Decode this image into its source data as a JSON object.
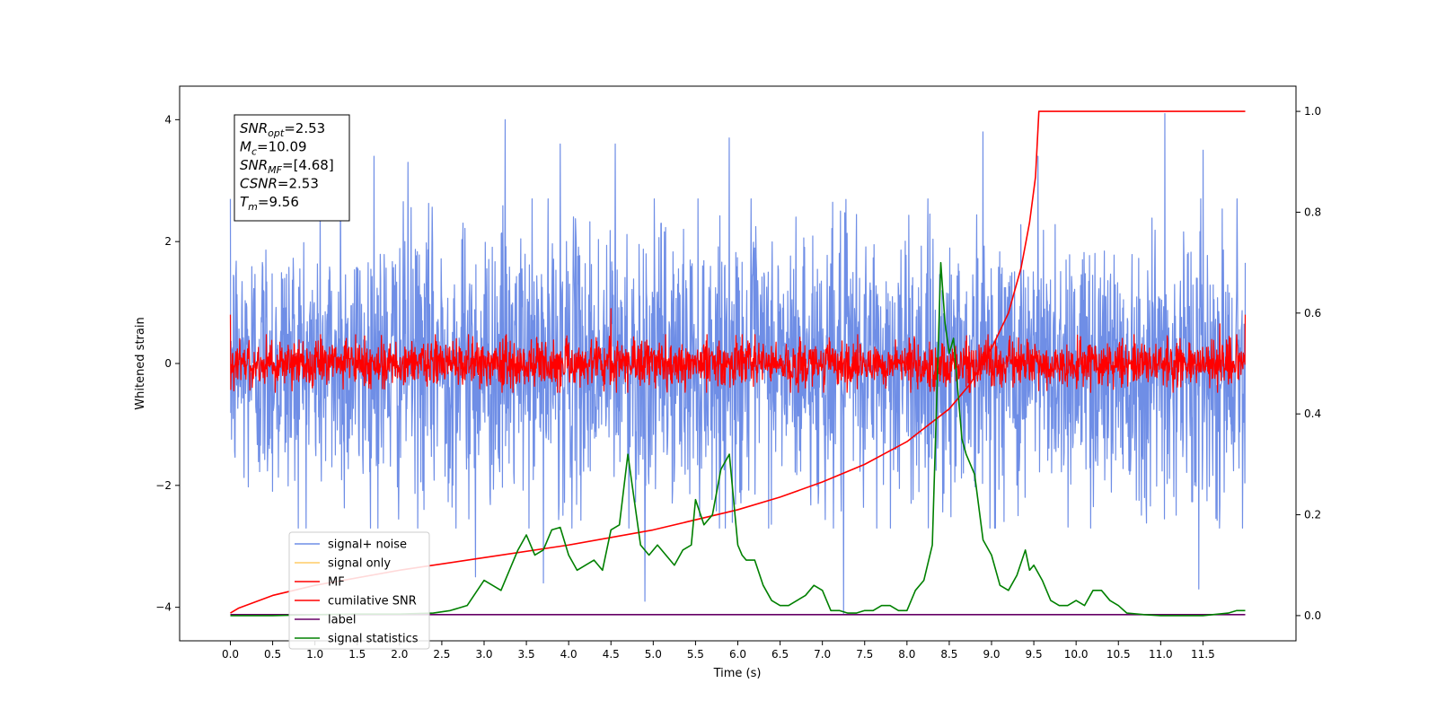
{
  "chart_data": {
    "type": "line",
    "xlabel": "Time (s)",
    "ylabel": "Whitened strain",
    "xlim": [
      -0.6,
      12.6
    ],
    "ylim_left": [
      -4.55,
      4.55
    ],
    "ylim_right": [
      -0.05,
      1.05
    ],
    "x_ticks": [
      0.0,
      0.5,
      1.0,
      1.5,
      2.0,
      2.5,
      3.0,
      3.5,
      4.0,
      4.5,
      5.0,
      5.5,
      6.0,
      6.5,
      7.0,
      7.5,
      8.0,
      8.5,
      9.0,
      9.5,
      10.0,
      10.5,
      11.0,
      11.5
    ],
    "x_tick_labels": [
      "0.0",
      "0.5",
      "1.0",
      "1.5",
      "2.0",
      "2.5",
      "3.0",
      "3.5",
      "4.0",
      "4.5",
      "5.0",
      "5.5",
      "6.0",
      "6.5",
      "7.0",
      "7.5",
      "8.0",
      "8.5",
      "9.0",
      "9.5",
      "10.0",
      "10.5",
      "11.0",
      "11.5"
    ],
    "y_left_ticks": [
      -4,
      -2,
      0,
      2,
      4
    ],
    "y_left_tick_labels": [
      "−4",
      "−2",
      "0",
      "2",
      "4"
    ],
    "y_right_ticks": [
      0.0,
      0.2,
      0.4,
      0.6,
      0.8,
      1.0
    ],
    "y_right_tick_labels": [
      "0.0",
      "0.2",
      "0.4",
      "0.6",
      "0.8",
      "1.0"
    ],
    "grid": false,
    "legend_placement": "bottom-left",
    "legend": [
      {
        "name": "signal+ noise",
        "color": "#6f8ee6"
      },
      {
        "name": "signal only",
        "color": "#ffcc66"
      },
      {
        "name": "MF",
        "color": "#ff0000"
      },
      {
        "name": "cumilative SNR",
        "color": "#ff0000"
      },
      {
        "name": "label",
        "color": "#660066"
      },
      {
        "name": "signal statistics",
        "color": "#008000"
      }
    ],
    "annotation_lines": [
      {
        "var": "SNR",
        "sub": "opt",
        "value": "=2.53"
      },
      {
        "var": "M",
        "sub": "c",
        "value": "=10.09"
      },
      {
        "var": "SNR",
        "sub": "MF",
        "value": "=[4.68]"
      },
      {
        "var": "CSNR",
        "sub": "",
        "value": "=2.53"
      },
      {
        "var": "T",
        "sub": "m",
        "value": "=9.56"
      }
    ],
    "series": [
      {
        "name": "signal+ noise",
        "axis": "left",
        "color": "#6f8ee6",
        "style": "noise",
        "x_range": [
          0.0,
          12.0
        ],
        "amplitude_typical": 2.0,
        "peak_events": [
          [
            1.3,
            3.2
          ],
          [
            1.7,
            3.4
          ],
          [
            2.1,
            3.3
          ],
          [
            3.25,
            4.0
          ],
          [
            3.9,
            3.6
          ],
          [
            4.55,
            3.6
          ],
          [
            5.9,
            3.7
          ],
          [
            8.9,
            3.8
          ],
          [
            9.55,
            3.4
          ],
          [
            11.05,
            4.1
          ],
          [
            11.5,
            3.5
          ],
          [
            7.25,
            -4.1
          ],
          [
            4.9,
            -3.9
          ],
          [
            3.7,
            -3.6
          ],
          [
            11.45,
            -3.7
          ],
          [
            2.9,
            -3.5
          ]
        ]
      },
      {
        "name": "MF",
        "axis": "left",
        "color": "#ff0000",
        "style": "noise",
        "x_range": [
          0.0,
          12.0
        ],
        "amplitude_typical": 0.35,
        "peak_events": [
          [
            0.0,
            0.8
          ],
          [
            4.5,
            0.9
          ],
          [
            12.0,
            0.8
          ],
          [
            11.7,
            0.65
          ]
        ]
      },
      {
        "name": "cumilative SNR",
        "axis": "right",
        "color": "#ff0000",
        "x": [
          0.0,
          0.1,
          0.5,
          1.0,
          2.0,
          3.0,
          4.0,
          5.0,
          6.0,
          6.5,
          7.0,
          7.5,
          8.0,
          8.5,
          8.75,
          9.0,
          9.2,
          9.35,
          9.45,
          9.52,
          9.56,
          10.0,
          11.0,
          12.0
        ],
        "values": [
          0.005,
          0.015,
          0.04,
          0.06,
          0.09,
          0.115,
          0.14,
          0.17,
          0.21,
          0.235,
          0.265,
          0.3,
          0.345,
          0.41,
          0.46,
          0.53,
          0.6,
          0.69,
          0.78,
          0.87,
          1.0,
          1.0,
          1.0,
          1.0
        ]
      },
      {
        "name": "label",
        "axis": "right",
        "color": "#660066",
        "x": [
          0.0,
          12.0
        ],
        "values": [
          0.002,
          0.002
        ]
      },
      {
        "name": "signal statistics",
        "axis": "right",
        "color": "#008000",
        "x": [
          0.0,
          0.5,
          1.0,
          1.5,
          2.0,
          2.4,
          2.6,
          2.8,
          3.0,
          3.1,
          3.2,
          3.3,
          3.4,
          3.5,
          3.6,
          3.7,
          3.8,
          3.9,
          4.0,
          4.1,
          4.2,
          4.3,
          4.4,
          4.5,
          4.6,
          4.7,
          4.75,
          4.85,
          4.95,
          5.05,
          5.15,
          5.25,
          5.35,
          5.45,
          5.5,
          5.6,
          5.7,
          5.8,
          5.9,
          6.0,
          6.05,
          6.1,
          6.2,
          6.3,
          6.4,
          6.5,
          6.6,
          6.7,
          6.8,
          6.9,
          7.0,
          7.1,
          7.2,
          7.3,
          7.4,
          7.5,
          7.6,
          7.7,
          7.8,
          7.9,
          8.0,
          8.1,
          8.2,
          8.3,
          8.4,
          8.45,
          8.5,
          8.55,
          8.6,
          8.65,
          8.7,
          8.8,
          8.9,
          9.0,
          9.1,
          9.2,
          9.3,
          9.4,
          9.45,
          9.5,
          9.6,
          9.7,
          9.8,
          9.9,
          10.0,
          10.1,
          10.2,
          10.3,
          10.4,
          10.5,
          10.6,
          10.8,
          11.0,
          11.5,
          11.8,
          11.9,
          12.0
        ],
        "values": [
          0.0,
          0.0,
          0.002,
          0.003,
          0.003,
          0.005,
          0.01,
          0.02,
          0.07,
          0.06,
          0.05,
          0.09,
          0.13,
          0.16,
          0.12,
          0.13,
          0.17,
          0.175,
          0.12,
          0.09,
          0.1,
          0.11,
          0.09,
          0.17,
          0.18,
          0.32,
          0.26,
          0.14,
          0.12,
          0.14,
          0.12,
          0.1,
          0.13,
          0.14,
          0.23,
          0.18,
          0.2,
          0.29,
          0.32,
          0.14,
          0.12,
          0.11,
          0.11,
          0.06,
          0.03,
          0.02,
          0.02,
          0.03,
          0.04,
          0.06,
          0.05,
          0.01,
          0.01,
          0.005,
          0.005,
          0.01,
          0.01,
          0.02,
          0.02,
          0.01,
          0.01,
          0.05,
          0.07,
          0.14,
          0.7,
          0.58,
          0.52,
          0.55,
          0.45,
          0.35,
          0.32,
          0.28,
          0.15,
          0.12,
          0.06,
          0.05,
          0.08,
          0.13,
          0.09,
          0.1,
          0.07,
          0.03,
          0.02,
          0.02,
          0.03,
          0.02,
          0.05,
          0.05,
          0.03,
          0.02,
          0.005,
          0.002,
          0.0,
          0.0,
          0.005,
          0.01,
          0.01
        ]
      }
    ]
  }
}
